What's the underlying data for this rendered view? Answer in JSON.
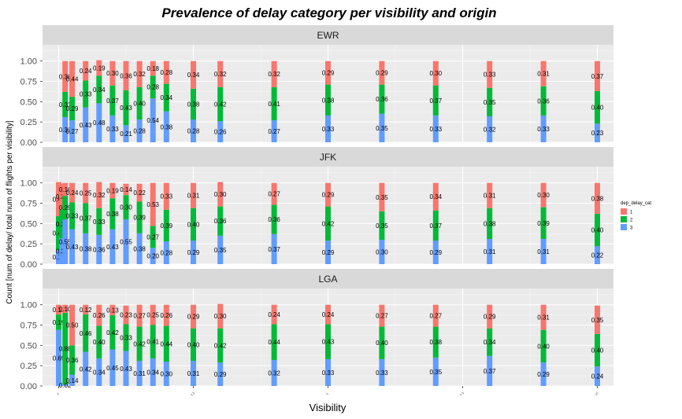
{
  "chart_data": {
    "type": "bar",
    "stacked": true,
    "title": "Prevalence of delay category per visibility and origin",
    "xlabel": "Visibility",
    "ylabel": "Count [num of delay/ total num of flights per visibility]",
    "ylim": [
      0,
      1.2
    ],
    "yticks": [
      "0.00",
      "0.25",
      "0.50",
      "0.75",
      "1.00"
    ],
    "xlim": [
      -0.3,
      10.3
    ],
    "xticks": [
      {
        "value": 0,
        "label": "0"
      },
      {
        "value": 2.5,
        "label": "2.5"
      },
      {
        "value": 5,
        "label": "5"
      },
      {
        "value": 7.5,
        "label": "7.5"
      },
      {
        "value": 10,
        "label": "10"
      }
    ],
    "grid": true,
    "legend": {
      "title": "dep_delay_cat",
      "placement": "right",
      "entries": [
        {
          "label": "1",
          "color": "#F8766D"
        },
        {
          "label": "2",
          "color": "#00BA38"
        },
        {
          "label": "3",
          "color": "#619CFF"
        }
      ]
    },
    "colors": {
      "1": "#F8766D",
      "2": "#00BA38",
      "3": "#619CFF"
    },
    "panels": [
      {
        "name": "EWR",
        "bars": [
          {
            "x": 0.12,
            "cat3": 0.31,
            "cat2": 0.31,
            "cat1": 0.38
          },
          {
            "x": 0.25,
            "cat3": 0.27,
            "cat2": 0.29,
            "cat1": 0.44
          },
          {
            "x": 0.5,
            "cat3": 0.43,
            "cat2": 0.33,
            "cat1": 0.24
          },
          {
            "x": 0.75,
            "cat3": 0.48,
            "cat2": 0.34,
            "cat1": 0.19
          },
          {
            "x": 1,
            "cat3": 0.33,
            "cat2": 0.37,
            "cat1": 0.3
          },
          {
            "x": 1.25,
            "cat3": 0.21,
            "cat2": 0.43,
            "cat1": 0.36
          },
          {
            "x": 1.5,
            "cat3": 0.28,
            "cat2": 0.4,
            "cat1": 0.32
          },
          {
            "x": 1.75,
            "cat3": 0.54,
            "cat2": 0.28,
            "cat1": 0.18
          },
          {
            "x": 2,
            "cat3": 0.38,
            "cat2": 0.34,
            "cat1": 0.28
          },
          {
            "x": 2.5,
            "cat3": 0.28,
            "cat2": 0.38,
            "cat1": 0.34
          },
          {
            "x": 3,
            "cat3": 0.26,
            "cat2": 0.42,
            "cat1": 0.32
          },
          {
            "x": 4,
            "cat3": 0.27,
            "cat2": 0.41,
            "cat1": 0.32
          },
          {
            "x": 5,
            "cat3": 0.33,
            "cat2": 0.38,
            "cat1": 0.29
          },
          {
            "x": 6,
            "cat3": 0.35,
            "cat2": 0.36,
            "cat1": 0.29
          },
          {
            "x": 7,
            "cat3": 0.33,
            "cat2": 0.37,
            "cat1": 0.3
          },
          {
            "x": 8,
            "cat3": 0.32,
            "cat2": 0.35,
            "cat1": 0.33
          },
          {
            "x": 9,
            "cat3": 0.33,
            "cat2": 0.36,
            "cat1": 0.31
          },
          {
            "x": 10,
            "cat3": 0.23,
            "cat2": 0.4,
            "cat1": 0.37
          }
        ]
      },
      {
        "name": "JFK",
        "bars": [
          {
            "x": 0,
            "cat3": 0.17,
            "cat2": 0.42,
            "cat1": 0.42
          },
          {
            "x": 0.06,
            "cat3": 0.32,
            "cat2": 0.35,
            "cat1": 0.32
          },
          {
            "x": 0.12,
            "cat3": 0.55,
            "cat2": 0.29,
            "cat1": 0.16
          },
          {
            "x": 0.25,
            "cat3": 0.43,
            "cat2": 0.33,
            "cat1": 0.24
          },
          {
            "x": 0.5,
            "cat3": 0.38,
            "cat2": 0.37,
            "cat1": 0.25
          },
          {
            "x": 0.75,
            "cat3": 0.36,
            "cat2": 0.33,
            "cat1": 0.32
          },
          {
            "x": 1,
            "cat3": 0.43,
            "cat2": 0.38,
            "cat1": 0.19
          },
          {
            "x": 1.25,
            "cat3": 0.55,
            "cat2": 0.3,
            "cat1": 0.14
          },
          {
            "x": 1.5,
            "cat3": 0.38,
            "cat2": 0.39,
            "cat1": 0.22
          },
          {
            "x": 1.75,
            "cat3": 0.2,
            "cat2": 0.27,
            "cat1": 0.53
          },
          {
            "x": 2,
            "cat3": 0.28,
            "cat2": 0.39,
            "cat1": 0.33
          },
          {
            "x": 2.5,
            "cat3": 0.29,
            "cat2": 0.4,
            "cat1": 0.31
          },
          {
            "x": 3,
            "cat3": 0.35,
            "cat2": 0.36,
            "cat1": 0.3
          },
          {
            "x": 4,
            "cat3": 0.37,
            "cat2": 0.36,
            "cat1": 0.27
          },
          {
            "x": 5,
            "cat3": 0.29,
            "cat2": 0.42,
            "cat1": 0.29
          },
          {
            "x": 6,
            "cat3": 0.3,
            "cat2": 0.35,
            "cat1": 0.35
          },
          {
            "x": 7,
            "cat3": 0.29,
            "cat2": 0.37,
            "cat1": 0.34
          },
          {
            "x": 8,
            "cat3": 0.31,
            "cat2": 0.38,
            "cat1": 0.31
          },
          {
            "x": 9,
            "cat3": 0.31,
            "cat2": 0.39,
            "cat1": 0.3
          },
          {
            "x": 10,
            "cat3": 0.22,
            "cat2": 0.4,
            "cat1": 0.38
          }
        ]
      },
      {
        "name": "LGA",
        "bars": [
          {
            "x": 0,
            "cat3": 0.69,
            "cat2": 0.19,
            "cat1": 0.12
          },
          {
            "x": 0.12,
            "cat3": 0.02,
            "cat2": 0.88,
            "cat1": 0.1
          },
          {
            "x": 0.25,
            "cat3": 0.14,
            "cat2": 0.36,
            "cat1": 0.5
          },
          {
            "x": 0.5,
            "cat3": 0.42,
            "cat2": 0.46,
            "cat1": 0.12
          },
          {
            "x": 0.75,
            "cat3": 0.34,
            "cat2": 0.4,
            "cat1": 0.26
          },
          {
            "x": 1,
            "cat3": 0.45,
            "cat2": 0.42,
            "cat1": 0.13
          },
          {
            "x": 1.25,
            "cat3": 0.43,
            "cat2": 0.33,
            "cat1": 0.23
          },
          {
            "x": 1.5,
            "cat3": 0.31,
            "cat2": 0.42,
            "cat1": 0.27
          },
          {
            "x": 1.75,
            "cat3": 0.34,
            "cat2": 0.41,
            "cat1": 0.25
          },
          {
            "x": 2,
            "cat3": 0.3,
            "cat2": 0.44,
            "cat1": 0.26
          },
          {
            "x": 2.5,
            "cat3": 0.31,
            "cat2": 0.4,
            "cat1": 0.29
          },
          {
            "x": 3,
            "cat3": 0.29,
            "cat2": 0.42,
            "cat1": 0.3
          },
          {
            "x": 4,
            "cat3": 0.32,
            "cat2": 0.44,
            "cat1": 0.24
          },
          {
            "x": 5,
            "cat3": 0.33,
            "cat2": 0.43,
            "cat1": 0.24
          },
          {
            "x": 6,
            "cat3": 0.33,
            "cat2": 0.4,
            "cat1": 0.27
          },
          {
            "x": 7,
            "cat3": 0.35,
            "cat2": 0.38,
            "cat1": 0.27
          },
          {
            "x": 8,
            "cat3": 0.37,
            "cat2": 0.34,
            "cat1": 0.29
          },
          {
            "x": 9,
            "cat3": 0.29,
            "cat2": 0.4,
            "cat1": 0.31
          },
          {
            "x": 10,
            "cat3": 0.24,
            "cat2": 0.4,
            "cat1": 0.35
          }
        ]
      }
    ]
  }
}
